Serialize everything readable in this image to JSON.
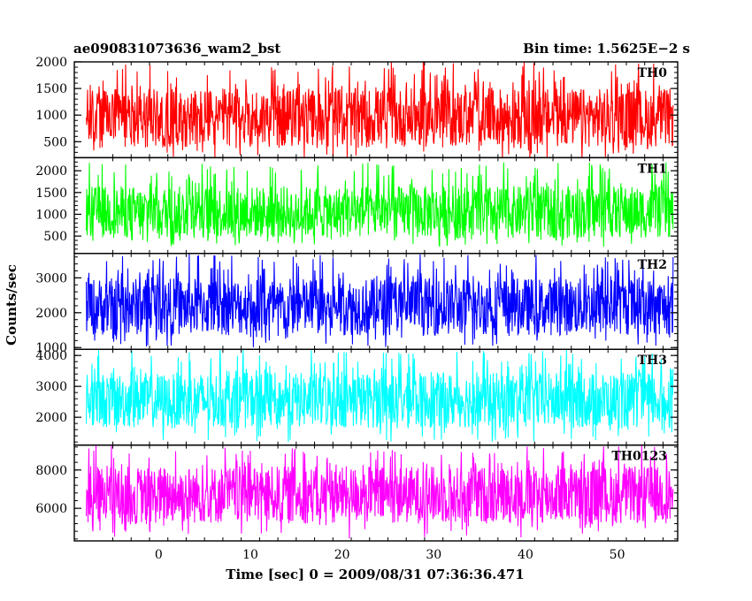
{
  "header": {
    "left_title": "ae090831073636_wam2_bst",
    "right_title": "Bin time: 1.5625E−2 s"
  },
  "chart_data": {
    "type": "line",
    "ylabel": "Counts/sec",
    "xlabel": "Time [sec] 0 = 2009/08/31 07:36:36.471",
    "xlim": [
      -9.2,
      56.6
    ],
    "x_ticks": [
      0,
      10,
      20,
      30,
      40,
      50
    ],
    "x_tick_labels": [
      "0",
      "10",
      "20",
      "30",
      "40",
      "50"
    ],
    "data_x_range": [
      -7.9,
      56.1
    ],
    "grid": false,
    "panels": [
      {
        "name": "TH0",
        "color": "#ff0000",
        "ylim": [
          200,
          2000
        ],
        "y_ticks": [
          500,
          1000,
          1500,
          2000
        ],
        "y_tick_labels": [
          "500",
          "1000",
          "1500",
          "2000"
        ],
        "baseline": 950,
        "typical_low": 400,
        "typical_high": 1500,
        "spike_min": 150,
        "spike_max": 2000
      },
      {
        "name": "TH1",
        "color": "#00ff00",
        "ylim": [
          100,
          2300
        ],
        "y_ticks": [
          500,
          1000,
          1500,
          2000
        ],
        "y_tick_labels": [
          "500",
          "1000",
          "1500",
          "2000"
        ],
        "baseline": 1050,
        "typical_low": 450,
        "typical_high": 1650,
        "spike_min": 250,
        "spike_max": 2200
      },
      {
        "name": "TH2",
        "color": "#0000ff",
        "ylim": [
          950,
          3700
        ],
        "y_ticks": [
          1000,
          2000,
          3000
        ],
        "y_tick_labels": [
          "1000",
          "2000",
          "3000"
        ],
        "baseline": 2150,
        "typical_low": 1350,
        "typical_high": 3000,
        "spike_min": 1000,
        "spike_max": 3700
      },
      {
        "name": "TH3",
        "color": "#00ffff",
        "ylim": [
          1100,
          4200
        ],
        "y_ticks": [
          2000,
          3000,
          4000
        ],
        "y_tick_labels": [
          "2000",
          "3000",
          "4000"
        ],
        "baseline": 2500,
        "typical_low": 1650,
        "typical_high": 3450,
        "spike_min": 1200,
        "spike_max": 4200
      },
      {
        "name": "TH0123",
        "color": "#ff00ff",
        "ylim": [
          4300,
          9300
        ],
        "y_ticks": [
          6000,
          8000
        ],
        "y_tick_labels": [
          "6000",
          "8000"
        ],
        "baseline": 6500,
        "typical_low": 5200,
        "typical_high": 8200,
        "spike_min": 4400,
        "spike_max": 9300
      }
    ]
  }
}
